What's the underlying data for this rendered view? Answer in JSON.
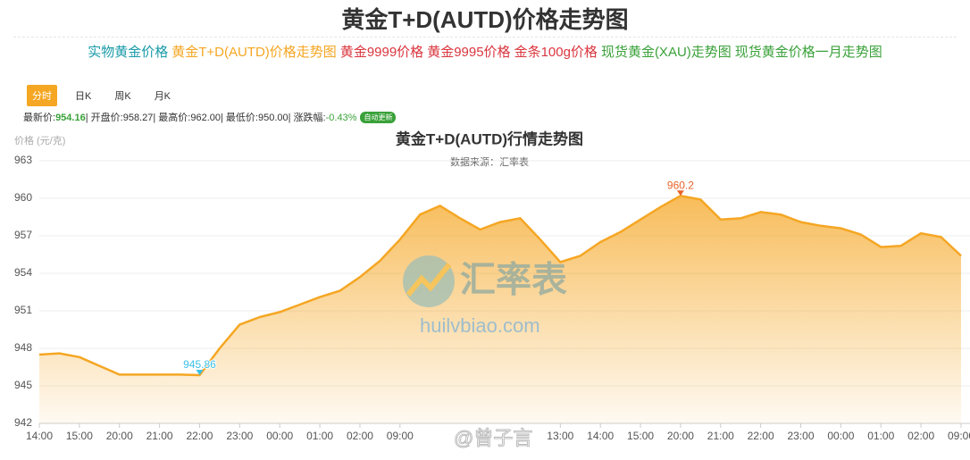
{
  "header": {
    "title": "黄金T+D(AUTD)价格走势图"
  },
  "nav": [
    {
      "text": "实物黄金价格",
      "color": "#1a9ba8"
    },
    {
      "text": "黄金T+D(AUTD)价格走势图",
      "color": "#f5a623"
    },
    {
      "text": "黄金9999价格",
      "color": "#d9363e"
    },
    {
      "text": "黄金9995价格",
      "color": "#d9363e"
    },
    {
      "text": "金条100g价格",
      "color": "#d9363e"
    },
    {
      "text": "现货黄金(XAU)走势图",
      "color": "#3aa13a"
    },
    {
      "text": "现货黄金价格一月走势图",
      "color": "#3aa13a"
    }
  ],
  "tabs": [
    "分时",
    "日K",
    "周K",
    "月K"
  ],
  "info": {
    "items": [
      {
        "label": "最新价:",
        "value": "954.16"
      },
      {
        "label": "| 开盘价:",
        "value": "958.27"
      },
      {
        "label": "| 最高价:",
        "value": "962.00"
      },
      {
        "label": "| 最低价:",
        "value": "950.00"
      },
      {
        "label": "| 涨跌幅:",
        "value": "-0.43%"
      }
    ],
    "badge": "自动更新"
  },
  "watermark": {
    "brand": "汇率表",
    "url": "huilvbiao.com",
    "credit": "@曾子言"
  },
  "chart_data": {
    "type": "line",
    "title": "黄金T+D(AUTD)行情走势图",
    "subtitle": "数据来源：汇率表",
    "y_label": "价格 (元/克)",
    "categories": [
      "14:00",
      null,
      "15:00",
      null,
      "20:00",
      null,
      "21:00",
      null,
      "22:00",
      null,
      "23:00",
      null,
      "00:00",
      null,
      "01:00",
      null,
      "02:00",
      null,
      "09:00",
      null,
      null,
      null,
      null,
      null,
      null,
      null,
      "13:00",
      null,
      "14:00",
      null,
      "15:00",
      null,
      "20:00",
      null,
      "21:00",
      null,
      "22:00",
      null,
      "23:00",
      null,
      "00:00",
      null,
      "01:00",
      null,
      "02:00",
      null,
      "09:00"
    ],
    "values": [
      947.5,
      947.6,
      947.3,
      946.6,
      945.9,
      945.9,
      945.9,
      945.9,
      945.86,
      948.0,
      949.9,
      950.5,
      950.9,
      951.5,
      952.1,
      952.6,
      953.7,
      955.0,
      956.7,
      958.7,
      959.4,
      958.4,
      957.5,
      958.1,
      958.4,
      956.7,
      954.9,
      955.4,
      956.5,
      957.3,
      958.3,
      959.3,
      960.2,
      959.9,
      958.3,
      958.4,
      958.9,
      958.7,
      958.1,
      957.8,
      957.6,
      957.1,
      956.1,
      956.2,
      957.2,
      956.9,
      955.4
    ],
    "value_labels": [
      null,
      null,
      null,
      null,
      null,
      null,
      null,
      null,
      "945.86",
      null,
      null,
      null,
      null,
      null,
      null,
      null,
      null,
      null,
      null,
      null,
      null,
      null,
      null,
      null,
      null,
      null,
      null,
      null,
      null,
      null,
      null,
      null,
      "960.2",
      null,
      null,
      null,
      null,
      null,
      null,
      null,
      null,
      null,
      null,
      null,
      null,
      null,
      null
    ],
    "color": "#f5a623",
    "ylim": [
      942,
      963
    ],
    "yticks": [
      942,
      945,
      948,
      951,
      954,
      957,
      960,
      963
    ],
    "grid": true
  }
}
